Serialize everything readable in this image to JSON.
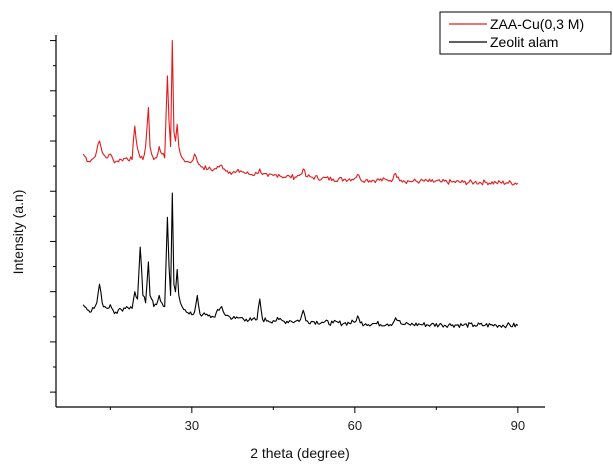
{
  "chart_data": {
    "type": "line",
    "xlabel": "2 theta (degree)",
    "ylabel": "Intensity (a.n)",
    "xlim": [
      5,
      95
    ],
    "ylim": [
      0,
      1
    ],
    "x_ticks": [
      30,
      60,
      90
    ],
    "y_ticks_labeled": false,
    "grid": false,
    "legend": {
      "placement": "top-right",
      "box": true
    },
    "series": [
      {
        "name": "ZAA-Cu(0,3 M)",
        "color": "#e31a1c",
        "baseline": 0.605,
        "x": [
          10,
          11,
          12,
          12.5,
          13,
          13.5,
          14,
          14.5,
          15,
          15.5,
          16,
          17,
          18,
          19,
          19.5,
          20,
          20.5,
          21,
          21.5,
          22,
          22.3,
          22.6,
          23,
          23.5,
          24,
          24.5,
          25,
          25.5,
          25.8,
          26.1,
          26.4,
          26.7,
          27,
          27.3,
          27.6,
          27.9,
          28.2,
          28.5,
          29,
          29.5,
          30,
          30.5,
          31,
          31.5,
          32,
          33,
          34,
          35,
          35.5,
          36,
          37,
          38,
          39,
          40,
          41,
          42,
          42.5,
          43,
          44,
          45,
          46,
          47,
          48,
          49,
          50,
          50.5,
          51,
          52,
          54,
          56,
          58,
          60,
          60.5,
          61,
          62,
          64,
          66,
          67,
          67.5,
          68,
          68.5,
          69,
          70,
          72,
          74,
          76,
          78,
          80,
          82,
          84,
          86,
          88,
          90
        ],
        "y": [
          0.68,
          0.66,
          0.67,
          0.69,
          0.715,
          0.685,
          0.675,
          0.67,
          0.68,
          0.665,
          0.66,
          0.665,
          0.67,
          0.665,
          0.755,
          0.695,
          0.67,
          0.665,
          0.7,
          0.805,
          0.7,
          0.68,
          0.665,
          0.67,
          0.7,
          0.68,
          0.67,
          0.89,
          0.77,
          0.7,
          0.985,
          0.74,
          0.715,
          0.76,
          0.7,
          0.68,
          0.67,
          0.665,
          0.66,
          0.658,
          0.66,
          0.68,
          0.66,
          0.65,
          0.645,
          0.64,
          0.638,
          0.645,
          0.65,
          0.64,
          0.632,
          0.63,
          0.635,
          0.628,
          0.625,
          0.628,
          0.64,
          0.625,
          0.62,
          0.622,
          0.625,
          0.618,
          0.62,
          0.618,
          0.625,
          0.64,
          0.62,
          0.618,
          0.615,
          0.613,
          0.612,
          0.615,
          0.625,
          0.613,
          0.61,
          0.61,
          0.61,
          0.612,
          0.628,
          0.618,
          0.61,
          0.608,
          0.607,
          0.607,
          0.606,
          0.605,
          0.605,
          0.604,
          0.604,
          0.604,
          0.603,
          0.603,
          0.602
        ]
      },
      {
        "name": "Zeolit alam",
        "color": "#000000",
        "baseline": 0.22,
        "x": [
          10,
          11,
          12,
          12.5,
          13,
          13.5,
          14,
          14.5,
          15,
          15.5,
          16,
          17,
          18,
          19,
          19.5,
          20,
          20.5,
          21,
          21.5,
          22,
          22.3,
          22.6,
          23,
          23.5,
          24,
          24.5,
          25,
          25.5,
          25.8,
          26.1,
          26.4,
          26.7,
          27,
          27.3,
          27.6,
          27.9,
          28.2,
          28.5,
          29,
          29.5,
          30,
          30.5,
          31,
          31.5,
          32,
          33,
          34,
          35,
          35.5,
          36,
          37,
          38,
          39,
          40,
          41,
          42,
          42.5,
          43,
          44,
          45,
          46,
          47,
          48,
          49,
          50,
          50.5,
          51,
          52,
          54,
          56,
          58,
          60,
          60.5,
          61,
          62,
          64,
          66,
          67,
          67.5,
          68,
          68.5,
          69,
          70,
          72,
          74,
          76,
          78,
          80,
          82,
          84,
          86,
          88,
          90
        ],
        "y": [
          0.275,
          0.26,
          0.265,
          0.28,
          0.33,
          0.28,
          0.27,
          0.265,
          0.275,
          0.26,
          0.255,
          0.262,
          0.27,
          0.265,
          0.31,
          0.29,
          0.43,
          0.3,
          0.28,
          0.39,
          0.3,
          0.29,
          0.27,
          0.275,
          0.3,
          0.28,
          0.27,
          0.51,
          0.38,
          0.3,
          0.575,
          0.33,
          0.31,
          0.37,
          0.3,
          0.28,
          0.27,
          0.262,
          0.255,
          0.25,
          0.248,
          0.255,
          0.3,
          0.25,
          0.248,
          0.245,
          0.242,
          0.26,
          0.27,
          0.25,
          0.242,
          0.238,
          0.24,
          0.236,
          0.233,
          0.235,
          0.29,
          0.236,
          0.232,
          0.232,
          0.235,
          0.23,
          0.232,
          0.23,
          0.235,
          0.26,
          0.232,
          0.23,
          0.228,
          0.226,
          0.225,
          0.228,
          0.245,
          0.226,
          0.224,
          0.224,
          0.223,
          0.225,
          0.24,
          0.232,
          0.224,
          0.222,
          0.222,
          0.222,
          0.221,
          0.221,
          0.221,
          0.22,
          0.22,
          0.22,
          0.22,
          0.22,
          0.219
        ]
      }
    ]
  }
}
